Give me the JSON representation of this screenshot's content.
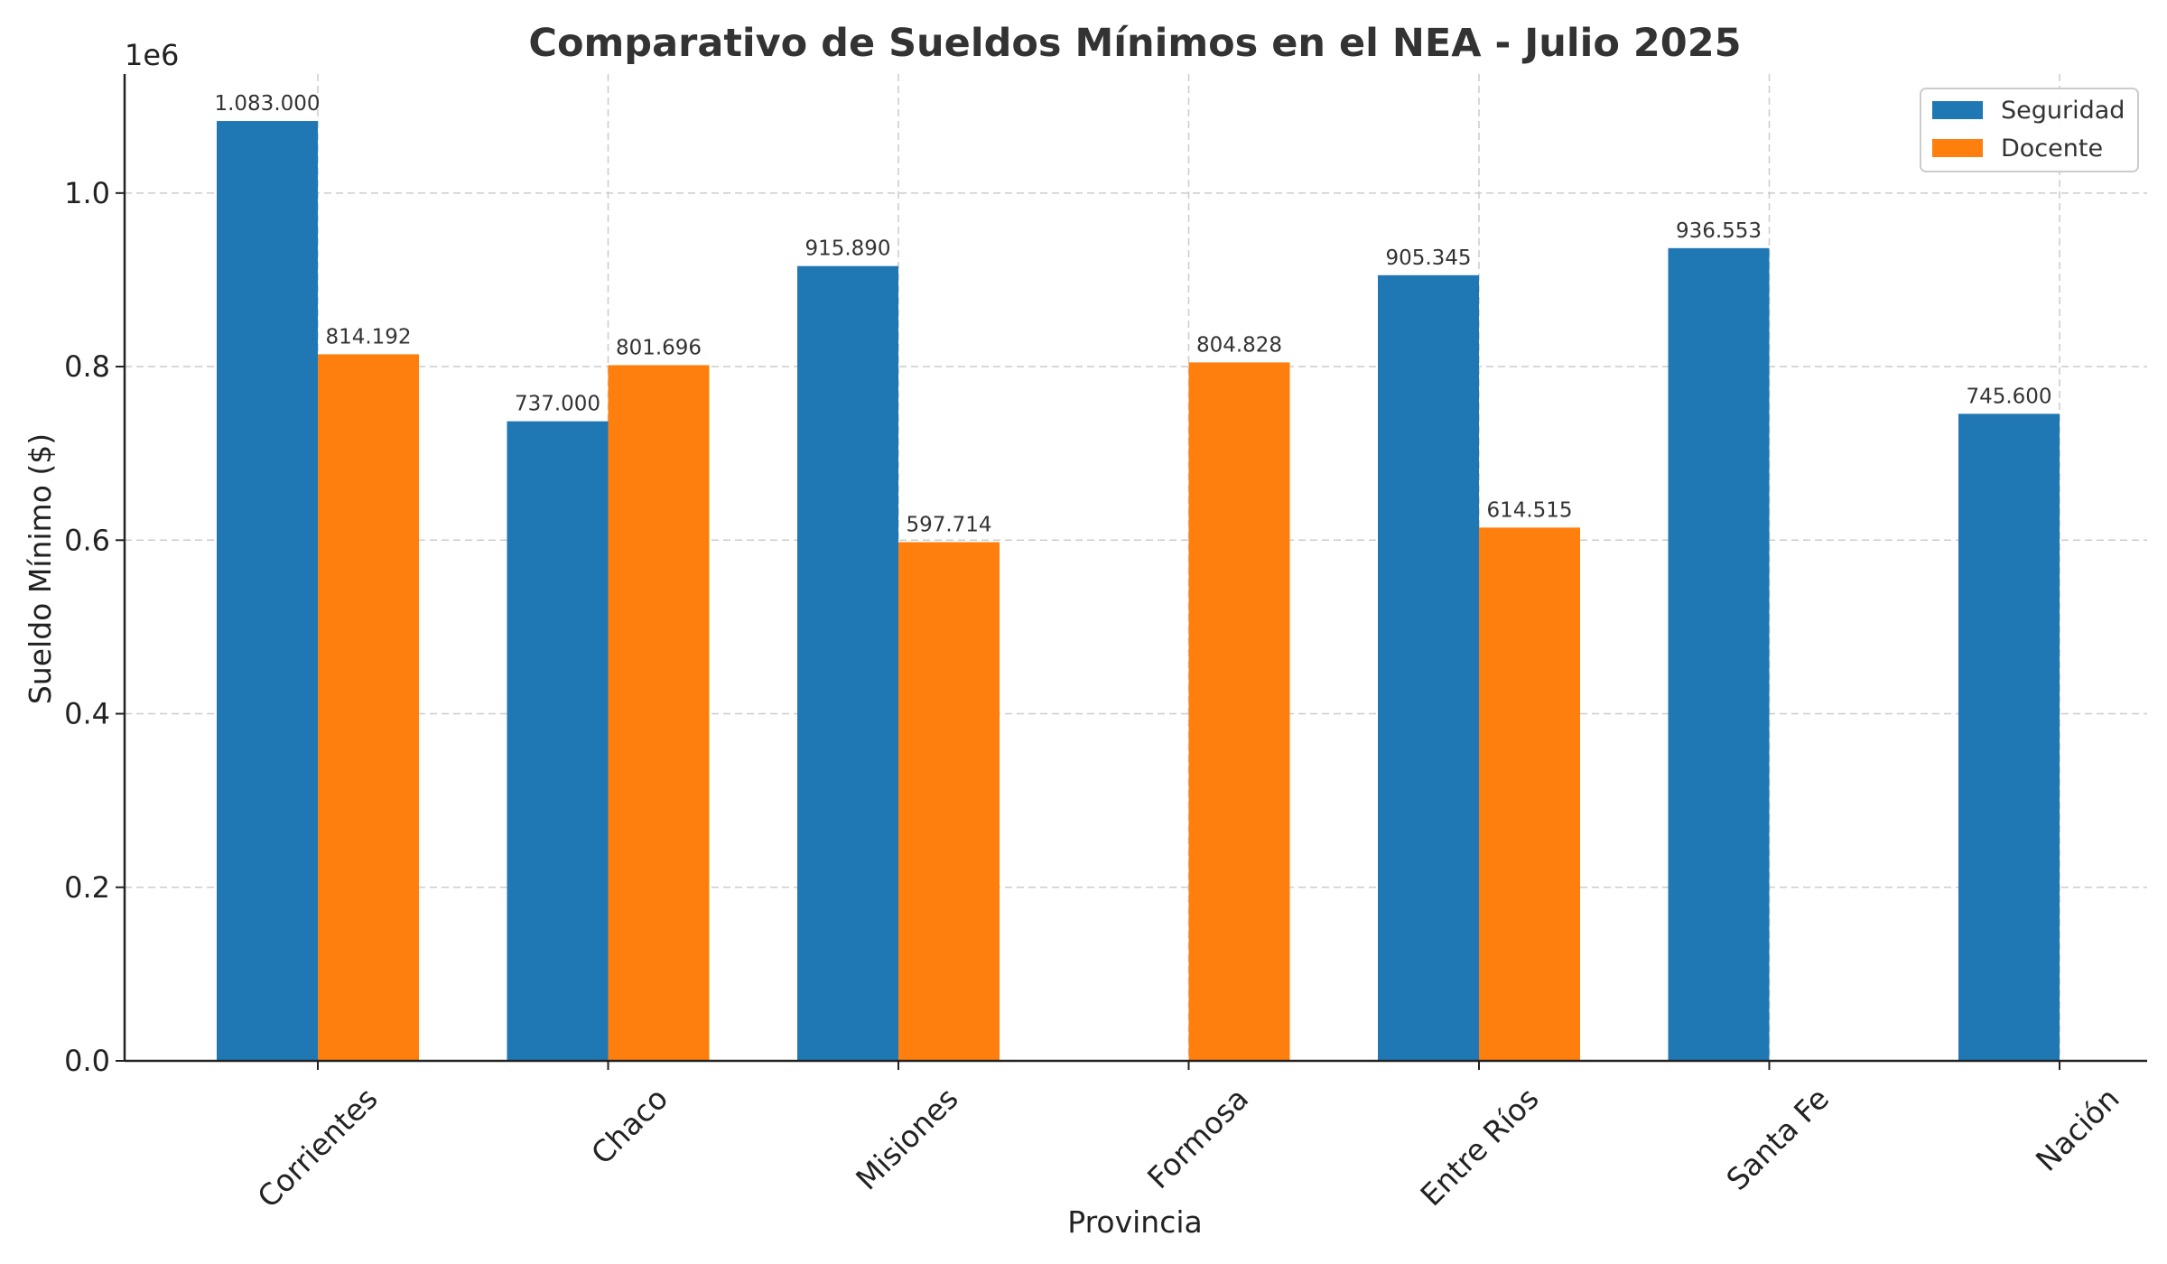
{
  "chart_data": {
    "type": "bar",
    "title": "Comparativo de Sueldos Mínimos en el NEA - Julio 2025",
    "xlabel": "Provincia",
    "ylabel": "Sueldo Mínimo ($)",
    "y_multiplier_label": "1e6",
    "ylim": [
      0,
      1137150
    ],
    "yticks": [
      0,
      200000,
      400000,
      600000,
      800000,
      1000000
    ],
    "ytick_labels": [
      "0.0",
      "0.2",
      "0.4",
      "0.6",
      "0.8",
      "1.0"
    ],
    "grid": true,
    "legend_position": "top-right",
    "categories": [
      "Corrientes",
      "Chaco",
      "Misiones",
      "Formosa",
      "Entre Ríos",
      "Santa Fe",
      "Nación"
    ],
    "series": [
      {
        "name": "Seguridad",
        "color": "#1f77b4",
        "values": [
          1083000,
          737000,
          915890,
          null,
          905345,
          936553,
          745600
        ],
        "labels": [
          "1.083.000",
          "737.000",
          "915.890",
          "",
          "905.345",
          "936.553",
          "745.600"
        ]
      },
      {
        "name": "Docente",
        "color": "#ff7f0e",
        "values": [
          814192,
          801696,
          597714,
          804828,
          614515,
          null,
          null
        ],
        "labels": [
          "814.192",
          "801.696",
          "597.714",
          "804.828",
          "614.515",
          "",
          ""
        ]
      }
    ]
  }
}
